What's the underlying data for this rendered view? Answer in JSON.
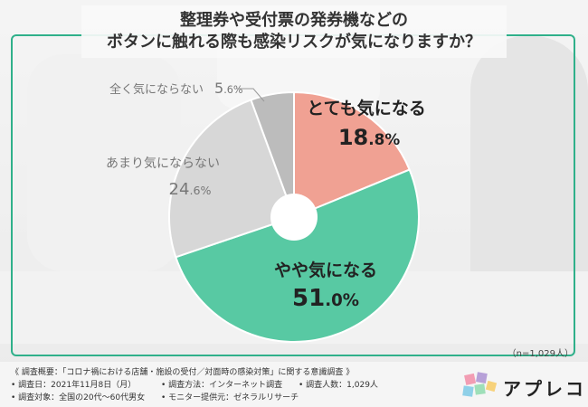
{
  "title": {
    "line1": "整理券や受付票の発券機などの",
    "line2": "ボタンに触れる際も感染リスクが気になりますか？"
  },
  "chart_data": {
    "type": "pie",
    "categories": [
      "とても気になる",
      "やや気になる",
      "あまり気にならない",
      "全く気にならない"
    ],
    "values": [
      18.8,
      51.0,
      24.6,
      5.6
    ],
    "colors": [
      "#f0a193",
      "#58c9a3",
      "#d7d7d7",
      "#bcbcbc"
    ],
    "value_labels": [
      {
        "int": "18",
        "dec": ".8%"
      },
      {
        "int": "51",
        "dec": ".0%"
      },
      {
        "int": "24",
        "dec": ".6%"
      },
      {
        "int": "5",
        "dec": ".6%"
      }
    ],
    "start": "top",
    "direction": "clockwise",
    "donut": true
  },
  "n_note": "（n=1,029人）",
  "footer": {
    "summary": "《 調査概要：「コロナ禍における店舗・施設の受付／対面時の感染対策」に関する意識調査 》",
    "date": "• 調査日：2021年11月8日（月）",
    "method": "• 調査方法：インターネット調査",
    "people": "• 調査人数：1,029人",
    "target": "• 調査対象：全国の20代～60代男女",
    "provider": "• モニター提供元：ゼネラルリサーチ"
  },
  "logo": {
    "text": "アプレコ",
    "colors": [
      "#f29db3",
      "#b7a1d8",
      "#8fd0e8",
      "#9edfb9",
      "#f7d27b"
    ]
  }
}
